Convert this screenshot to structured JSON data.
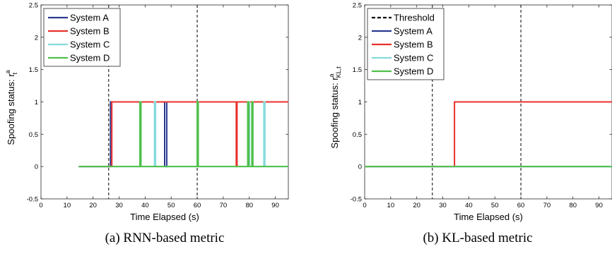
{
  "captions": [
    "(a) RNN-based metric",
    "(b) KL-based metric"
  ],
  "colors": {
    "system_a": "#2b3990",
    "system_b": "#e8302c",
    "system_c": "#86dada",
    "system_d": "#4fc04a",
    "threshold": "#000000"
  },
  "chart_data": [
    {
      "type": "line",
      "title": "",
      "xlabel": "Time Elapsed (s)",
      "ylabel": "Spoofing status: r",
      "ylabel_sup": "a",
      "ylabel_sub": "t",
      "xlim": [
        0,
        95
      ],
      "ylim": [
        -0.5,
        2.5
      ],
      "xticks": [
        0,
        10,
        20,
        30,
        40,
        50,
        60,
        70,
        80,
        90
      ],
      "yticks": [
        -0.5,
        0,
        0.5,
        1,
        1.5,
        2,
        2.5
      ],
      "ytick_labels": [
        "-0.5",
        "0",
        "0.5",
        "1",
        "1.5",
        "2",
        "2.5"
      ],
      "grid": false,
      "legend_position": "top-left",
      "threshold_lines_x": [
        26,
        60
      ],
      "series": [
        {
          "name": "System A",
          "color": "#2b3990",
          "x": [
            14.5,
            26.7,
            26.7,
            47.5,
            47.5,
            48.3,
            48.3,
            95
          ],
          "y": [
            0,
            0,
            1,
            1,
            0,
            0,
            1,
            1
          ]
        },
        {
          "name": "System B",
          "color": "#e8302c",
          "x": [
            14.5,
            27.2,
            27.2,
            75,
            75,
            75.3,
            75.3,
            95
          ],
          "y": [
            0,
            0,
            1,
            1,
            0,
            0,
            1,
            1
          ]
        },
        {
          "name": "System C",
          "color": "#86dada",
          "x": [
            14.5,
            43.6,
            43.6,
            44,
            44,
            79.7,
            79.7,
            80.1,
            80.1,
            85.6,
            85.6,
            86,
            86,
            95
          ],
          "y": [
            0,
            0,
            1,
            1,
            0,
            0,
            1,
            1,
            0,
            0,
            1,
            1,
            0,
            0
          ]
        },
        {
          "name": "System D",
          "color": "#4fc04a",
          "x": [
            14.5,
            38,
            38,
            38.4,
            38.4,
            60,
            60,
            60.4,
            60.4,
            79.4,
            79.4,
            79.8,
            79.8,
            81,
            81,
            81.4,
            81.4,
            95
          ],
          "y": [
            0,
            0,
            1,
            1,
            0,
            0,
            1,
            1,
            0,
            0,
            1,
            1,
            0,
            0,
            1,
            1,
            0,
            0
          ]
        }
      ]
    },
    {
      "type": "line",
      "title": "",
      "xlabel": "Time Elapsed (s)",
      "ylabel": "Spoofing status: r",
      "ylabel_sup": "a",
      "ylabel_sub": "KL,t",
      "xlim": [
        0,
        95
      ],
      "ylim": [
        -0.5,
        2.5
      ],
      "xticks": [
        0,
        10,
        20,
        30,
        40,
        50,
        60,
        70,
        80,
        90
      ],
      "yticks": [
        -0.5,
        0,
        0.5,
        1,
        1.5,
        2,
        2.5
      ],
      "ytick_labels": [
        "-0.5",
        "0",
        "0.5",
        "1",
        "1.5",
        "2",
        "2.5"
      ],
      "grid": false,
      "legend_position": "top-left",
      "threshold_label": "Threshold",
      "threshold_lines_x": [
        26,
        60
      ],
      "series": [
        {
          "name": "System A",
          "color": "#2b3990",
          "x": [
            0,
            95
          ],
          "y": [
            0,
            0
          ]
        },
        {
          "name": "System B",
          "color": "#e8302c",
          "x": [
            0,
            34.5,
            34.5,
            95
          ],
          "y": [
            0,
            0,
            1,
            1
          ]
        },
        {
          "name": "System C",
          "color": "#86dada",
          "x": [
            0,
            95
          ],
          "y": [
            0,
            0
          ]
        },
        {
          "name": "System D",
          "color": "#4fc04a",
          "x": [
            0,
            95
          ],
          "y": [
            0,
            0
          ]
        }
      ]
    }
  ]
}
